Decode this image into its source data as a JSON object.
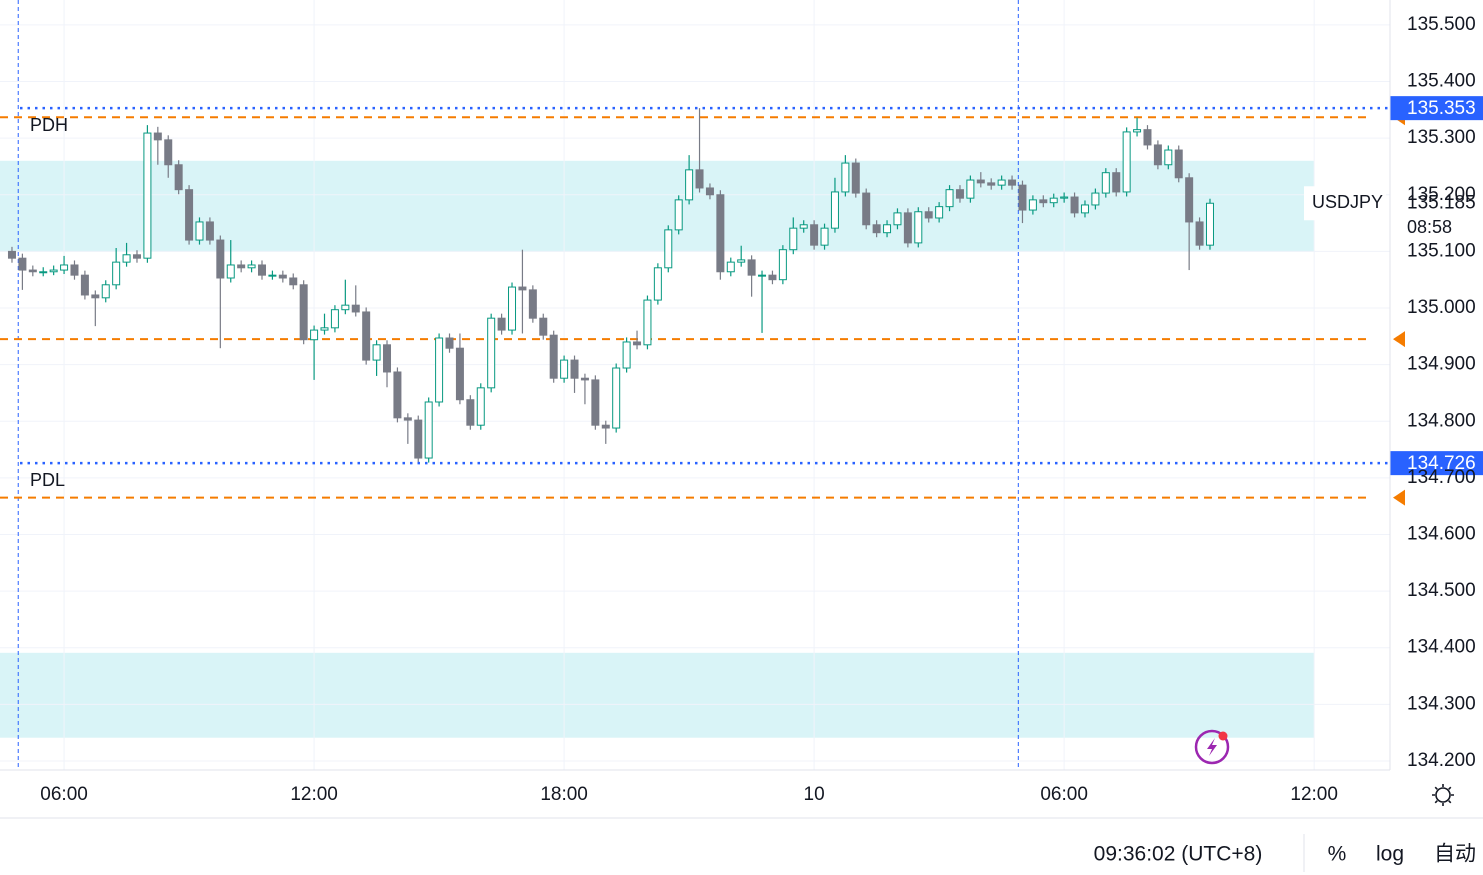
{
  "chart_data": {
    "type": "candlestick",
    "series": [
      {
        "name": "USDJPY",
        "up_color": "#089981",
        "down_color": "#787b86",
        "open": [
          135.1,
          135.088,
          135.067,
          135.064,
          135.064,
          135.067,
          135.076,
          135.058,
          135.023,
          135.018,
          135.041,
          135.081,
          135.094,
          135.088,
          135.309,
          135.297,
          135.253,
          135.209,
          135.12,
          135.152,
          135.12,
          135.053,
          135.076,
          135.071,
          135.076,
          135.058,
          135.058,
          135.053,
          135.041,
          134.944,
          134.961,
          134.965,
          134.997,
          135.005,
          134.993,
          134.908,
          134.935,
          134.887,
          134.806,
          134.802,
          134.735,
          134.834,
          134.947,
          134.929,
          134.838,
          134.793,
          134.859,
          134.982,
          134.961,
          135.037,
          135.032,
          134.982,
          134.952,
          134.876,
          134.908,
          134.876,
          134.873,
          134.793,
          134.788,
          134.894,
          134.94,
          134.935,
          135.014,
          135.071,
          135.138,
          135.191,
          135.244,
          135.212,
          135.2,
          135.064,
          135.081,
          135.085,
          135.058,
          135.058,
          135.05,
          135.103,
          135.141,
          135.147,
          135.111,
          135.141,
          135.205,
          135.256,
          135.203,
          135.147,
          135.133,
          135.147,
          135.168,
          135.115,
          135.17,
          135.159,
          135.179,
          135.209,
          135.194,
          135.226,
          135.221,
          135.217,
          135.226,
          135.217,
          135.173,
          135.191,
          135.186,
          135.194,
          135.196,
          135.168,
          135.182,
          135.203,
          135.239,
          135.205,
          135.311,
          135.315,
          135.288,
          135.253,
          135.279,
          135.23,
          135.152,
          135.111
        ],
        "high": [
          135.108,
          135.096,
          135.075,
          135.072,
          135.075,
          135.092,
          135.084,
          135.066,
          135.031,
          135.049,
          135.106,
          135.115,
          135.102,
          135.323,
          135.32,
          135.305,
          135.261,
          135.217,
          135.16,
          135.16,
          135.128,
          135.12,
          135.084,
          135.084,
          135.084,
          135.066,
          135.066,
          135.061,
          135.049,
          134.969,
          134.99,
          135.005,
          135.05,
          135.04,
          135.001,
          134.943,
          134.943,
          134.895,
          134.814,
          134.81,
          134.842,
          134.955,
          134.955,
          134.955,
          134.846,
          134.867,
          134.99,
          134.99,
          135.045,
          135.103,
          135.04,
          134.99,
          134.96,
          134.916,
          134.916,
          134.884,
          134.881,
          134.801,
          134.902,
          134.948,
          134.96,
          135.022,
          135.079,
          135.146,
          135.199,
          135.27,
          135.353,
          135.22,
          135.208,
          135.089,
          135.11,
          135.093,
          135.066,
          135.066,
          135.111,
          135.16,
          135.155,
          135.155,
          135.149,
          135.23,
          135.27,
          135.264,
          135.211,
          135.155,
          135.155,
          135.176,
          135.176,
          135.178,
          135.178,
          135.187,
          135.217,
          135.217,
          135.234,
          135.24,
          135.229,
          135.234,
          135.234,
          135.225,
          135.199,
          135.199,
          135.202,
          135.204,
          135.204,
          135.19,
          135.211,
          135.247,
          135.247,
          135.319,
          135.336,
          135.323,
          135.296,
          135.287,
          135.287,
          135.238,
          135.16,
          135.193
        ],
        "low": [
          135.08,
          135.032,
          135.056,
          135.056,
          135.058,
          135.06,
          135.05,
          135.015,
          134.968,
          135.01,
          135.033,
          135.073,
          135.08,
          135.08,
          135.253,
          135.23,
          135.201,
          135.112,
          135.112,
          135.112,
          134.929,
          135.045,
          135.063,
          135.063,
          135.05,
          135.05,
          135.045,
          135.033,
          134.936,
          134.873,
          134.953,
          134.957,
          134.989,
          134.985,
          134.9,
          134.88,
          134.86,
          134.798,
          134.76,
          134.726,
          134.727,
          134.826,
          134.921,
          134.83,
          134.785,
          134.785,
          134.851,
          134.953,
          134.953,
          134.955,
          134.974,
          134.944,
          134.868,
          134.868,
          134.85,
          134.83,
          134.785,
          134.76,
          134.78,
          134.886,
          134.927,
          134.927,
          135.006,
          135.063,
          135.13,
          135.183,
          135.204,
          135.192,
          135.05,
          135.056,
          135.073,
          135.02,
          134.956,
          135.042,
          135.042,
          135.095,
          135.133,
          135.103,
          135.103,
          135.133,
          135.197,
          135.195,
          135.139,
          135.125,
          135.125,
          135.139,
          135.107,
          135.107,
          135.151,
          135.151,
          135.171,
          135.186,
          135.186,
          135.213,
          135.209,
          135.209,
          135.209,
          135.15,
          135.165,
          135.178,
          135.178,
          135.186,
          135.16,
          135.16,
          135.174,
          135.195,
          135.197,
          135.197,
          135.303,
          135.28,
          135.245,
          135.245,
          135.222,
          135.067,
          135.103,
          135.103
        ],
        "close": [
          135.088,
          135.067,
          135.064,
          135.064,
          135.067,
          135.076,
          135.058,
          135.023,
          135.018,
          135.041,
          135.081,
          135.094,
          135.088,
          135.309,
          135.297,
          135.253,
          135.209,
          135.12,
          135.152,
          135.12,
          135.053,
          135.076,
          135.071,
          135.076,
          135.058,
          135.058,
          135.053,
          135.041,
          134.944,
          134.961,
          134.965,
          134.997,
          135.005,
          134.993,
          134.908,
          134.935,
          134.887,
          134.806,
          134.802,
          134.735,
          134.834,
          134.947,
          134.929,
          134.838,
          134.793,
          134.859,
          134.982,
          134.961,
          135.037,
          135.032,
          134.982,
          134.952,
          134.876,
          134.908,
          134.876,
          134.873,
          134.793,
          134.788,
          134.894,
          134.94,
          134.935,
          135.014,
          135.071,
          135.138,
          135.191,
          135.244,
          135.212,
          135.2,
          135.064,
          135.081,
          135.085,
          135.058,
          135.058,
          135.05,
          135.103,
          135.141,
          135.147,
          135.111,
          135.141,
          135.205,
          135.256,
          135.203,
          135.147,
          135.133,
          135.147,
          135.168,
          135.115,
          135.17,
          135.159,
          135.179,
          135.209,
          135.194,
          135.226,
          135.221,
          135.217,
          135.226,
          135.217,
          135.173,
          135.191,
          135.186,
          135.194,
          135.196,
          135.168,
          135.182,
          135.203,
          135.239,
          135.205,
          135.311,
          135.315,
          135.288,
          135.253,
          135.279,
          135.23,
          135.152,
          135.111,
          135.185
        ]
      }
    ],
    "xlim": [
      -1.15,
      132.28
    ],
    "xticks": [
      {
        "value": 5,
        "label": "06:00"
      },
      {
        "value": 29,
        "label": "12:00"
      },
      {
        "value": 53,
        "label": "18:00"
      },
      {
        "value": 77,
        "label": "10"
      },
      {
        "value": 101,
        "label": "06:00"
      },
      {
        "value": 125,
        "label": "12:00"
      }
    ],
    "ylim": [
      134.184,
      135.544
    ],
    "yticks": [
      {
        "value": 135.5,
        "label": "135.500"
      },
      {
        "value": 135.4,
        "label": "135.400"
      },
      {
        "value": 135.3,
        "label": "135.300"
      },
      {
        "value": 135.2,
        "label": "135.200"
      },
      {
        "value": 135.1,
        "label": "135.100"
      },
      {
        "value": 135.0,
        "label": "135.000"
      },
      {
        "value": 134.9,
        "label": "134.900"
      },
      {
        "value": 134.8,
        "label": "134.800"
      },
      {
        "value": 134.7,
        "label": "134.700"
      },
      {
        "value": 134.6,
        "label": "134.600"
      },
      {
        "value": 134.5,
        "label": "134.500"
      },
      {
        "value": 134.4,
        "label": "134.400"
      },
      {
        "value": 134.3,
        "label": "134.300"
      },
      {
        "value": 134.2,
        "label": "134.200"
      }
    ],
    "grid": true,
    "session_breaks": {
      "color": "#2962ff",
      "x": [
        0.6,
        96.6
      ]
    },
    "zones": {
      "color": "#d9f4f7",
      "ranges": [
        [
          135.099,
          135.26
        ],
        [
          134.241,
          134.391
        ]
      ]
    },
    "levels": [
      {
        "label": "PDH",
        "value": {
          "value": 135.353,
          "label": "135.353"
        },
        "color": "#2962ff"
      },
      {
        "label": "PDL",
        "value": {
          "value": 134.726,
          "label": "134.726"
        },
        "color": "#2962ff"
      }
    ],
    "alert_lines": {
      "color": "#f57c00",
      "values": [
        135.337,
        134.945,
        134.665
      ]
    },
    "last_price": {
      "symbol": "USDJPY",
      "value": {
        "value": 135.185,
        "label": "135.185"
      },
      "countdown": "08:58"
    }
  },
  "status_bar": {
    "time": "09:36:02 (UTC+8)",
    "buttons": [
      "%",
      "log",
      "自动"
    ]
  }
}
